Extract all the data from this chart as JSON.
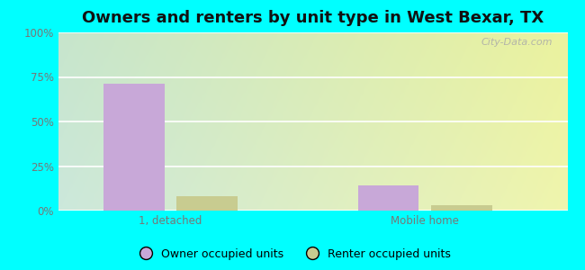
{
  "title": "Owners and renters by unit type in West Bexar, TX",
  "categories": [
    "1, detached",
    "Mobile home"
  ],
  "owner_values": [
    71,
    14
  ],
  "renter_values": [
    8,
    3
  ],
  "owner_color": "#c8a8d8",
  "renter_color": "#c8cc90",
  "ylim": [
    0,
    100
  ],
  "yticks": [
    0,
    25,
    50,
    75,
    100
  ],
  "ytick_labels": [
    "0%",
    "25%",
    "50%",
    "75%",
    "100%"
  ],
  "owner_label": "Owner occupied units",
  "renter_label": "Renter occupied units",
  "bg_color_topleft": "#cce8dc",
  "bg_color_topright": "#e8f4e0",
  "bg_color_bottomleft": "#e0f4ec",
  "bg_color_bottomright": "#f4fce8",
  "outer_bg": "#00ffff",
  "title_fontsize": 13,
  "bar_width": 0.12,
  "group_positions": [
    0.22,
    0.72
  ],
  "watermark": "City-Data.com"
}
